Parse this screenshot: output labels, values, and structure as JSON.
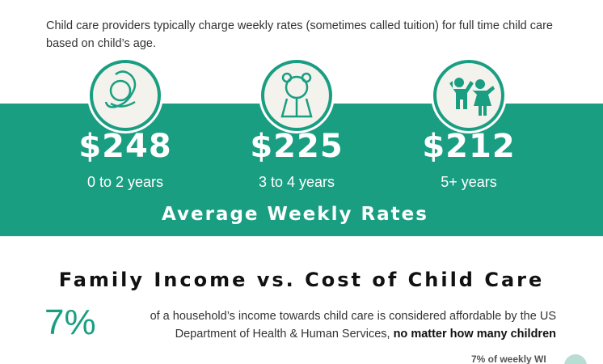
{
  "intro": "Child care providers typically charge weekly rates (sometimes called tuition) for full time child care based on child’s age.",
  "rates": [
    {
      "amount": "$248",
      "age": "0 to 2 years"
    },
    {
      "amount": "$225",
      "age": "3 to 4 years"
    },
    {
      "amount": "$212",
      "age": "5+ years"
    }
  ],
  "band_title": "Average Weekly Rates",
  "section": {
    "title": "Family Income vs. Cost of Child Care",
    "stat": "7%",
    "text": "of a household’s income towards child care is considered affordable by the US Department of Health & Human Services,",
    "emphasis": "no matter how many children"
  },
  "footer_snippet": "7% of weekly WI"
}
